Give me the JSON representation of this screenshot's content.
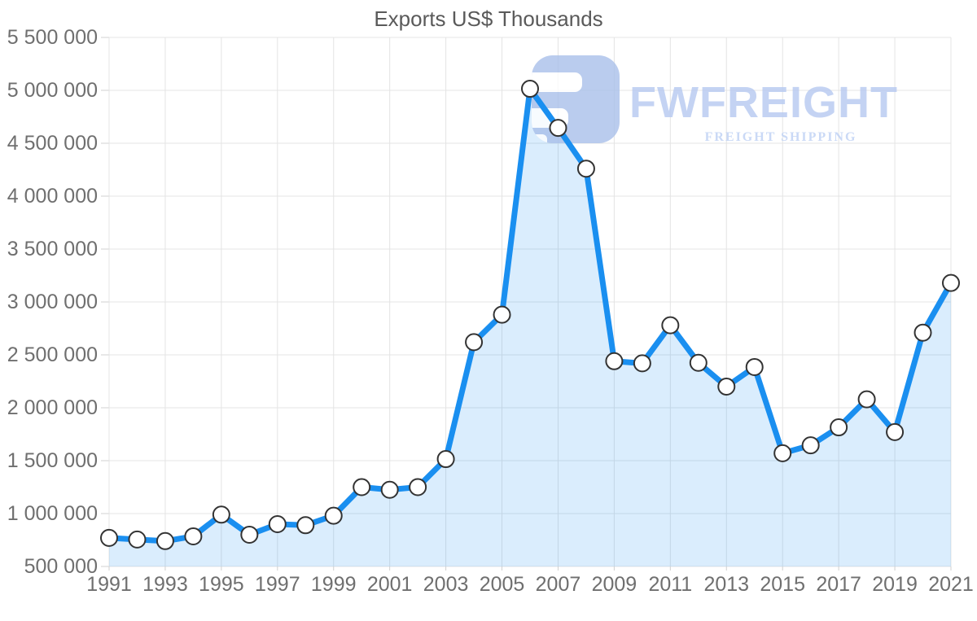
{
  "title": "Exports US$ Thousands",
  "watermark": {
    "brand": "FWFREIGHT",
    "tagline": "FREIGHT SHIPPING"
  },
  "colors": {
    "line": "#1a8ff0",
    "area_fill": "#2196f3",
    "area_opacity": 0.17,
    "marker_fill": "#ffffff",
    "marker_stroke": "#333333",
    "gridline": "#e4e4e4",
    "tick": "#d0d0d0",
    "axis_label": "#6f6f6f",
    "title": "#5a5a5a",
    "watermark_icon": "#a9c0ea",
    "watermark_text": "#b6c9f1",
    "watermark_tagline": "#bdd0f4"
  },
  "chart_data": {
    "type": "area",
    "title": "Exports US$ Thousands",
    "xlabel": "",
    "ylabel": "",
    "x": [
      1991,
      1992,
      1993,
      1994,
      1995,
      1996,
      1997,
      1998,
      1999,
      2000,
      2001,
      2002,
      2003,
      2004,
      2005,
      2006,
      2007,
      2008,
      2009,
      2010,
      2011,
      2012,
      2013,
      2014,
      2015,
      2016,
      2017,
      2018,
      2019,
      2020,
      2021
    ],
    "series": [
      {
        "name": "Exports US$ Thousands",
        "values": [
          770000,
          755000,
          740000,
          785000,
          990000,
          800000,
          900000,
          890000,
          980000,
          1250000,
          1225000,
          1250000,
          1515000,
          2620000,
          2880000,
          5015000,
          4645000,
          4260000,
          2440000,
          2420000,
          2780000,
          2425000,
          2200000,
          2385000,
          1570000,
          1645000,
          1815000,
          2080000,
          1770000,
          2710000,
          3180000
        ]
      }
    ],
    "ylim": [
      500000,
      5500000
    ],
    "y_tick_step": 500000,
    "y_tick_labels": [
      "5 500 000",
      "5 000 000",
      "4 500 000",
      "4 000 000",
      "3 500 000",
      "3 000 000",
      "2 500 000",
      "2 000 000",
      "1 500 000",
      "1 000 000",
      "500 000"
    ],
    "x_tick_labels": [
      "1991",
      "1993",
      "1995",
      "1997",
      "1999",
      "2001",
      "2003",
      "2005",
      "2007",
      "2009",
      "2011",
      "2013",
      "2015",
      "2017",
      "2019",
      "2021"
    ],
    "grid": true,
    "legend": false,
    "markers": true
  }
}
